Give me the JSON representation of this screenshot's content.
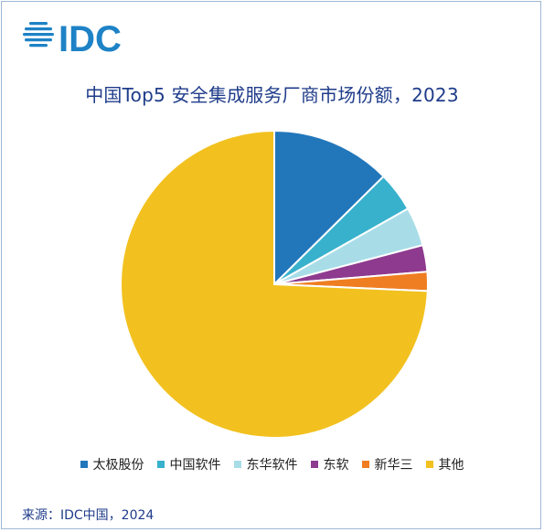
{
  "brand": {
    "logo_text": "IDC",
    "color": "#1e82c6"
  },
  "chart_data": {
    "type": "pie",
    "title": "中国Top5 安全集成服务厂商市场份额，2023",
    "categories": [
      "太极股份",
      "中国软件",
      "东华软件",
      "东软",
      "新华三",
      "其他"
    ],
    "values": [
      12.6,
      4.2,
      4.1,
      2.8,
      2.0,
      74.3
    ],
    "unit": "%",
    "colors": [
      "#2277bb",
      "#37b1cc",
      "#a8dde8",
      "#8e3a8f",
      "#ef7d22",
      "#f2c11f"
    ],
    "start_angle_deg": 0,
    "direction": "clockwise",
    "legend_position": "bottom",
    "highlight_separator": "#ffffff"
  },
  "footer": {
    "source": "来源：IDC中国，2024"
  }
}
